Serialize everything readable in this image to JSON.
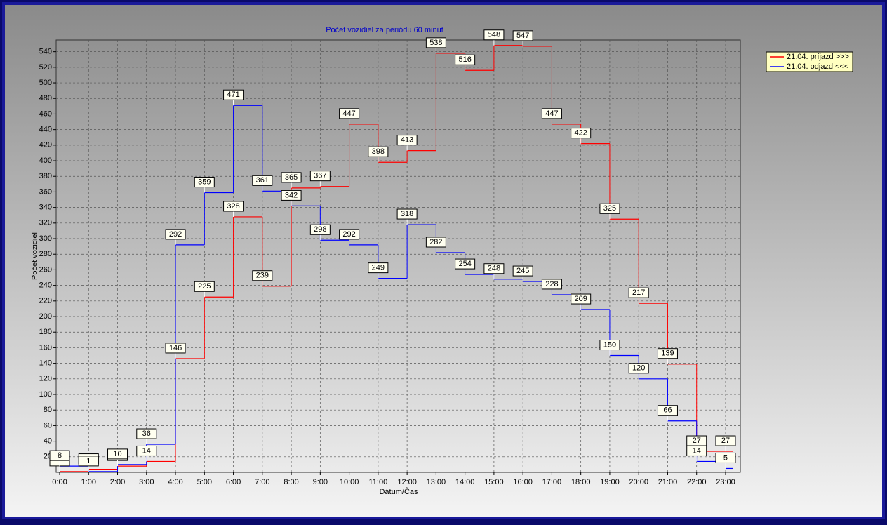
{
  "chart_data": {
    "type": "step",
    "title": "Počet vozidiel za periódu 60 minút",
    "x_label": "Dátum/Čas",
    "y_label": "Počet vozidiel",
    "categories": [
      "0:00",
      "1:00",
      "2:00",
      "3:00",
      "4:00",
      "5:00",
      "6:00",
      "7:00",
      "8:00",
      "9:00",
      "10:00",
      "11:00",
      "12:00",
      "13:00",
      "14:00",
      "15:00",
      "16:00",
      "17:00",
      "18:00",
      "19:00",
      "20:00",
      "21:00",
      "22:00",
      "23:00"
    ],
    "series": [
      {
        "name": "21.04.  príjazd >>>",
        "color": "#ff0000",
        "values": [
          1,
          4,
          8,
          14,
          146,
          225,
          328,
          239,
          365,
          367,
          447,
          398,
          413,
          538,
          516,
          548,
          547,
          447,
          422,
          325,
          217,
          139,
          27,
          27
        ]
      },
      {
        "name": "21.04.  odjazd <<<",
        "color": "#0000ff",
        "values": [
          8,
          1,
          10,
          36,
          292,
          359,
          471,
          361,
          342,
          298,
          292,
          249,
          318,
          282,
          254,
          248,
          245,
          228,
          209,
          150,
          120,
          66,
          14,
          5
        ]
      }
    ],
    "ylim": [
      0,
      555
    ],
    "yticks": [
      20,
      40,
      60,
      80,
      100,
      120,
      140,
      160,
      180,
      200,
      220,
      240,
      260,
      280,
      300,
      320,
      340,
      360,
      380,
      400,
      420,
      440,
      460,
      480,
      500,
      520,
      540
    ],
    "grid": true
  }
}
